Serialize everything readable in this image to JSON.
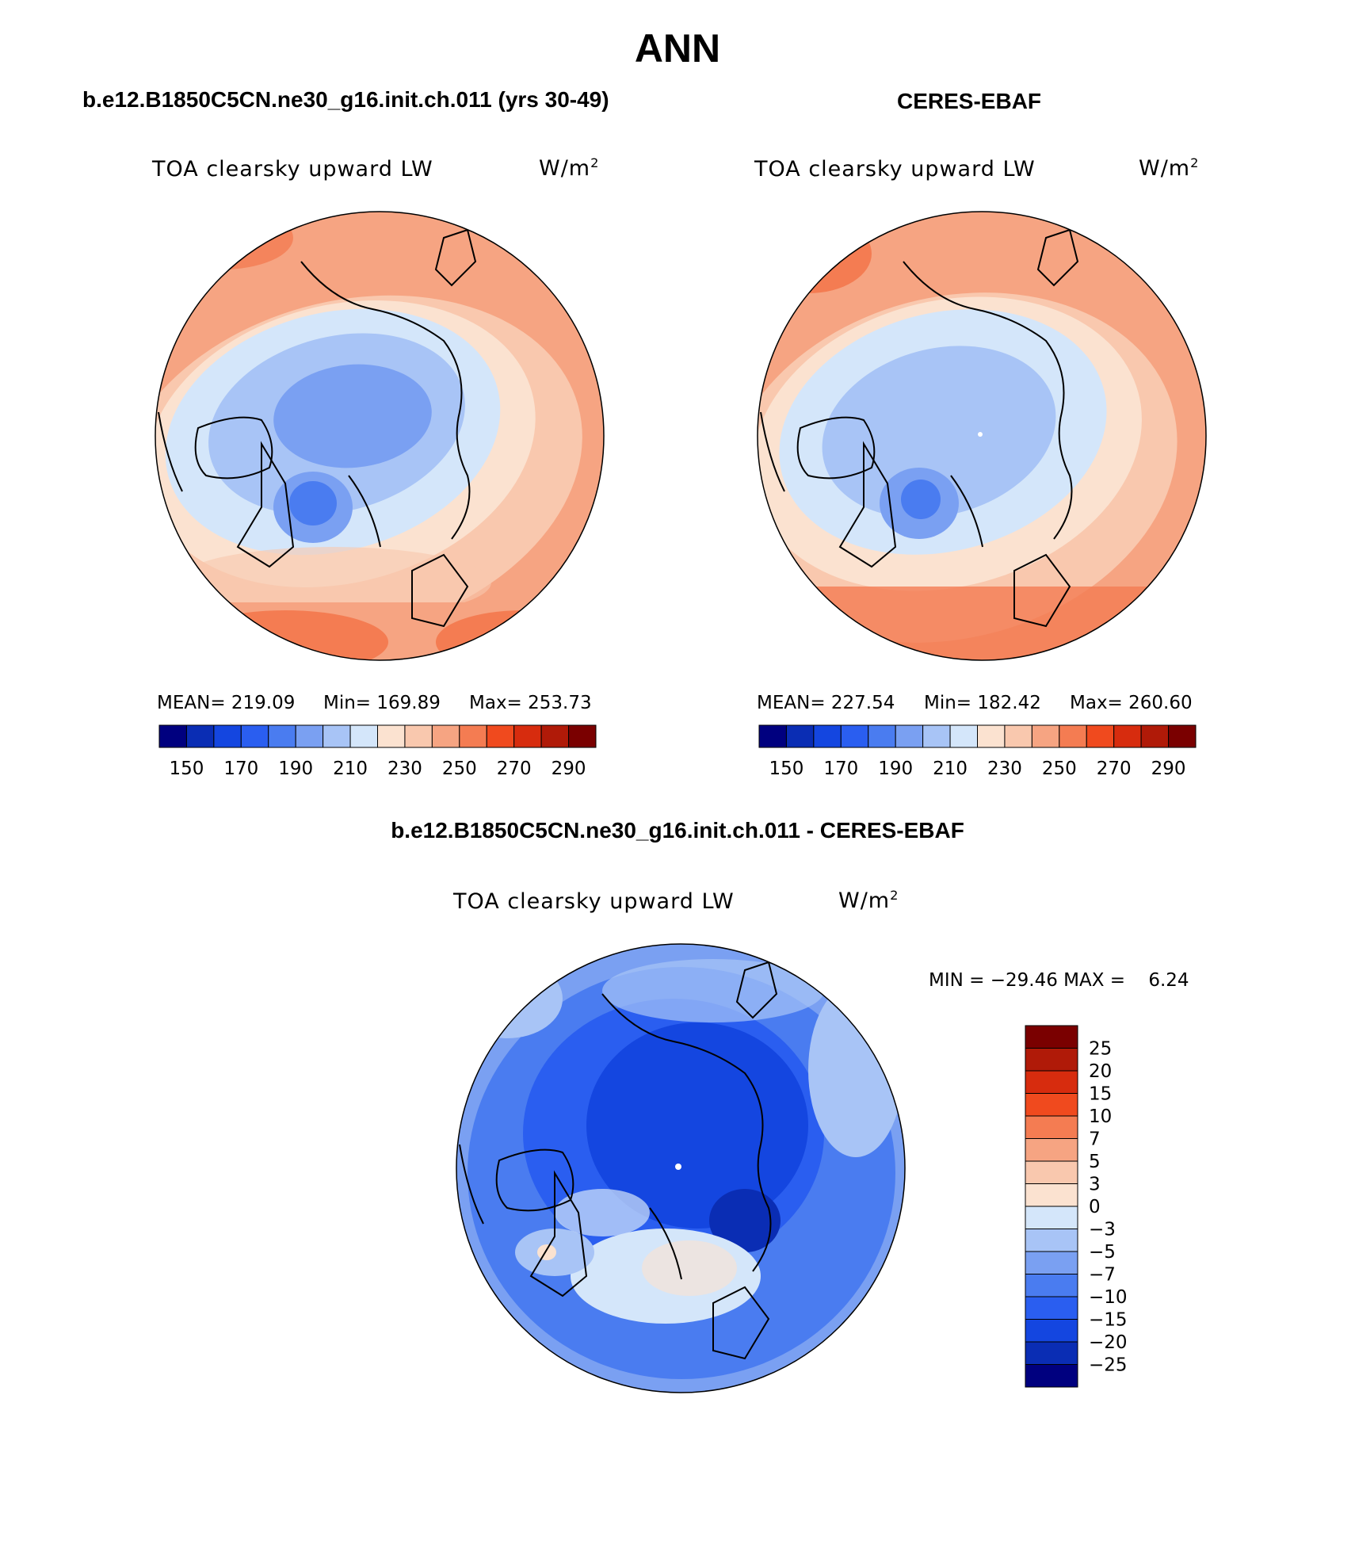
{
  "title": "ANN",
  "panels": {
    "model": {
      "heading": "b.e12.B1850C5CN.ne30_g16.init.ch.011 (yrs 30-49)",
      "var_label": "TOA clearsky upward LW",
      "units_base": "W/m",
      "units_exp": "2",
      "mean_text": "MEAN= 219.09",
      "min_text": "Min= 169.89",
      "max_text": "Max= 253.73"
    },
    "obs": {
      "heading": "CERES-EBAF",
      "var_label": "TOA clearsky upward LW",
      "units_base": "W/m",
      "units_exp": "2",
      "mean_text": "MEAN= 227.54",
      "min_text": "Min= 182.42",
      "max_text": "Max= 260.60"
    },
    "diff": {
      "heading": "b.e12.B1850C5CN.ne30_g16.init.ch.011 - CERES-EBAF",
      "var_label": "TOA clearsky upward LW",
      "units_base": "W/m",
      "units_exp": "2",
      "minmax_text": "MIN = −29.46 MAX =    6.24"
    }
  },
  "colors": {
    "abs_scale": [
      "#00007f",
      "#0a2db4",
      "#1446e0",
      "#2a5ef0",
      "#4a7cf0",
      "#7aa0f2",
      "#a8c4f6",
      "#d4e6fa",
      "#fbe2d0",
      "#f9c8ae",
      "#f6a482",
      "#f47c52",
      "#f04a1e",
      "#d72c0e",
      "#b01a08",
      "#7a0000"
    ],
    "diff_scale": [
      "#00007f",
      "#0a2db4",
      "#1446e0",
      "#2a5ef0",
      "#4a7cf0",
      "#7aa0f2",
      "#a8c4f6",
      "#d4e6fa",
      "#fbe2d0",
      "#f9c8ae",
      "#f6a482",
      "#f47c52",
      "#f04a1e",
      "#d72c0e",
      "#b01a08",
      "#7a0000"
    ]
  },
  "chart_data": [
    {
      "type": "heatmap",
      "projection": "north polar stereographic",
      "title": "b.e12.B1850C5CN.ne30_g16.init.ch.011 (yrs 30-49)",
      "variable": "TOA clearsky upward LW",
      "units": "W/m2",
      "mean": 219.09,
      "min": 169.89,
      "max": 253.73,
      "colorbar": {
        "orientation": "horizontal",
        "levels": [
          150,
          160,
          170,
          180,
          190,
          200,
          210,
          220,
          230,
          240,
          250,
          260,
          270,
          280,
          290
        ],
        "tick_labels": [
          "150",
          "170",
          "190",
          "210",
          "230",
          "250",
          "270",
          "290"
        ]
      }
    },
    {
      "type": "heatmap",
      "projection": "north polar stereographic",
      "title": "CERES-EBAF",
      "variable": "TOA clearsky upward LW",
      "units": "W/m2",
      "mean": 227.54,
      "min": 182.42,
      "max": 260.6,
      "colorbar": {
        "orientation": "horizontal",
        "levels": [
          150,
          160,
          170,
          180,
          190,
          200,
          210,
          220,
          230,
          240,
          250,
          260,
          270,
          280,
          290
        ],
        "tick_labels": [
          "150",
          "170",
          "190",
          "210",
          "230",
          "250",
          "270",
          "290"
        ]
      }
    },
    {
      "type": "heatmap",
      "projection": "north polar stereographic",
      "title": "b.e12.B1850C5CN.ne30_g16.init.ch.011 - CERES-EBAF",
      "variable": "TOA clearsky upward LW",
      "units": "W/m2",
      "min": -29.46,
      "max": 6.24,
      "colorbar": {
        "orientation": "vertical",
        "levels": [
          -25,
          -20,
          -15,
          -10,
          -7,
          -5,
          -3,
          0,
          3,
          5,
          7,
          10,
          15,
          20,
          25
        ],
        "tick_labels": [
          "25",
          "20",
          "15",
          "10",
          "7",
          "5",
          "3",
          "0",
          "−3",
          "−5",
          "−7",
          "−10",
          "−15",
          "−20",
          "−25"
        ]
      }
    }
  ]
}
